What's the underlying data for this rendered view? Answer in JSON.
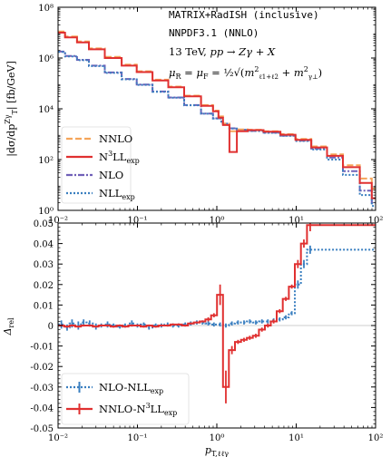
{
  "chart_data": [
    {
      "type": "line",
      "panel": "top",
      "ylabel": "|dσ/dp_T^{Zγ}| [fb/GeV]",
      "x_scale": "log",
      "y_scale": "log",
      "xlim": [
        0.01,
        100
      ],
      "ylim": [
        1,
        100000000
      ],
      "x_ticks": [
        "10⁻²",
        "10⁻¹",
        "10⁰",
        "10¹",
        "10²"
      ],
      "y_ticks": [
        "10⁰",
        "10²",
        "10⁴",
        "10⁶",
        "10⁸"
      ],
      "annotations": [
        "MATRIX+RadISH (inclusive)",
        "NNPDF3.1 (NNLO)",
        "13 TeV, pp → Zγ + X",
        "μR = μF = ½√(m²ℓ1+ℓ2 + m²γ⊥)"
      ],
      "legend_position": "lower-left",
      "series": [
        {
          "name": "NNLO",
          "color": "#f5a55a",
          "style": "dashed",
          "x": [
            0.01,
            0.015,
            0.02,
            0.03,
            0.05,
            0.08,
            0.12,
            0.2,
            0.3,
            0.5,
            0.8,
            1.0,
            1.1,
            1.3,
            1.6,
            2.0,
            3.0,
            5.0,
            8.0,
            12.0,
            20.0,
            30.0,
            50.0,
            80.0,
            100.0
          ],
          "y": [
            11000000,
            7000000,
            4500000,
            2400000,
            1100000,
            550000,
            300000,
            140000,
            75000,
            33000,
            14000,
            8500,
            5000,
            2600,
            1300,
            1550,
            1500,
            1300,
            1000,
            650,
            330,
            160,
            60,
            18,
            7
          ]
        },
        {
          "name": "N³LL_exp",
          "color": "#e03030",
          "style": "solid",
          "x": [
            0.01,
            0.015,
            0.02,
            0.03,
            0.05,
            0.08,
            0.12,
            0.2,
            0.3,
            0.5,
            0.8,
            1.0,
            1.1,
            1.3,
            1.6,
            2.0,
            3.0,
            5.0,
            8.0,
            12.0,
            20.0,
            30.0,
            50.0,
            80.0,
            100.0
          ],
          "y": [
            10000000,
            6500000,
            4100000,
            2200000,
            1000000,
            500000,
            280000,
            130000,
            70000,
            31000,
            13000,
            8000,
            4500,
            2300,
            200,
            1300,
            1450,
            1250,
            950,
            600,
            300,
            140,
            50,
            12,
            3
          ]
        },
        {
          "name": "NLO",
          "color": "#7060b8",
          "style": "dashdot",
          "x": [
            0.01,
            0.015,
            0.02,
            0.03,
            0.05,
            0.08,
            0.12,
            0.2,
            0.3,
            0.5,
            0.8,
            1.0,
            1.3,
            1.6,
            2.0,
            3.0,
            5.0,
            8.0,
            12.0,
            20.0,
            30.0,
            50.0,
            80.0,
            100.0
          ],
          "y": [
            1800000,
            1200000,
            850000,
            500000,
            270000,
            150000,
            90000,
            48000,
            28000,
            14000,
            6500,
            4200,
            2600,
            1700,
            1500,
            1350,
            1150,
            880,
            560,
            270,
            120,
            35,
            6,
            2
          ]
        },
        {
          "name": "NLL_exp",
          "color": "#3a7fc0",
          "style": "dotted",
          "x": [
            0.01,
            0.015,
            0.02,
            0.03,
            0.05,
            0.08,
            0.12,
            0.2,
            0.3,
            0.5,
            0.8,
            1.0,
            1.3,
            1.6,
            2.0,
            3.0,
            5.0,
            8.0,
            12.0,
            20.0,
            30.0,
            50.0,
            80.0,
            100.0
          ],
          "y": [
            1750000,
            1150000,
            820000,
            480000,
            260000,
            145000,
            88000,
            47000,
            27500,
            13800,
            6400,
            4150,
            2580,
            1680,
            1480,
            1330,
            1130,
            860,
            540,
            250,
            100,
            25,
            4,
            1.5
          ]
        }
      ]
    },
    {
      "type": "line",
      "panel": "bottom",
      "xlabel": "p_{T,ℓℓγ}",
      "ylabel": "Δ_rel",
      "x_scale": "log",
      "xlim": [
        0.01,
        100
      ],
      "ylim": [
        -0.05,
        0.05
      ],
      "x_ticks": [
        "10⁻²",
        "10⁻¹",
        "10⁰",
        "10¹",
        "10²"
      ],
      "y_ticks": [
        "-0.05",
        "-0.04",
        "-0.03",
        "-0.02",
        "-0.01",
        "0",
        "0.01",
        "0.02",
        "0.03",
        "0.04",
        "0.05"
      ],
      "legend_position": "lower-left",
      "series": [
        {
          "name": "NLO-NLL_exp",
          "color": "#3a7fc0",
          "style": "dotted-errorbars",
          "x": [
            0.011,
            0.013,
            0.015,
            0.018,
            0.021,
            0.025,
            0.03,
            0.035,
            0.042,
            0.05,
            0.06,
            0.07,
            0.085,
            0.1,
            0.12,
            0.14,
            0.17,
            0.2,
            0.24,
            0.28,
            0.33,
            0.4,
            0.47,
            0.56,
            0.66,
            0.78,
            0.92,
            1.1,
            1.3,
            1.55,
            1.85,
            2.2,
            2.6,
            3.1,
            3.7,
            4.4,
            5.2,
            6.2,
            7.4,
            8.8,
            10.5,
            12.5,
            15.0
          ],
          "y": [
            0.0005,
            -0.001,
            0.001,
            0.0,
            0.0015,
            0.001,
            -0.0005,
            0.0,
            0.0005,
            0.0,
            -0.0005,
            0.0,
            0.001,
            0.0,
            0.0005,
            -0.001,
            0.0,
            0.0,
            0.0005,
            0.0,
            0.0,
            0.0005,
            0.001,
            0.0015,
            0.0015,
            0.001,
            0.0005,
            0.0005,
            0.0,
            0.001,
            0.0015,
            0.0015,
            0.002,
            0.0015,
            0.002,
            0.002,
            0.0025,
            0.003,
            0.004,
            0.006,
            0.02,
            0.03,
            0.037
          ],
          "yerr": [
            0.002,
            0.0015,
            0.002,
            0.002,
            0.0015,
            0.0015,
            0.0015,
            0.001,
            0.0015,
            0.001,
            0.001,
            0.001,
            0.0015,
            0.001,
            0.001,
            0.001,
            0.001,
            0.001,
            0.001,
            0.001,
            0.001,
            0.001,
            0.001,
            0.001,
            0.001,
            0.001,
            0.001,
            0.001,
            0.001,
            0.001,
            0.001,
            0.001,
            0.001,
            0.001,
            0.001,
            0.001,
            0.001,
            0.001,
            0.001,
            0.001,
            0.002,
            0.002,
            0.002
          ]
        },
        {
          "name": "NNLO-N³LL_exp",
          "color": "#e03030",
          "style": "solid-errorbars",
          "x": [
            0.011,
            0.013,
            0.015,
            0.018,
            0.021,
            0.025,
            0.03,
            0.035,
            0.042,
            0.05,
            0.06,
            0.07,
            0.085,
            0.1,
            0.12,
            0.14,
            0.17,
            0.2,
            0.24,
            0.28,
            0.33,
            0.4,
            0.47,
            0.56,
            0.66,
            0.78,
            0.92,
            1.1,
            1.3,
            1.55,
            1.85,
            2.2,
            2.6,
            3.1,
            3.7,
            4.4,
            5.2,
            6.2,
            7.4,
            8.8,
            10.5,
            12.5,
            15.0
          ],
          "y": [
            0.0,
            -0.0005,
            0.0,
            -0.0005,
            0.0,
            0.0,
            -0.0005,
            0.0,
            0.0,
            -0.0005,
            0.0,
            -0.0005,
            0.0,
            0.0,
            -0.0005,
            0.0,
            -0.0005,
            0.0,
            0.0,
            0.0005,
            0.0005,
            0.0,
            0.001,
            0.0015,
            0.002,
            0.003,
            0.005,
            0.015,
            -0.03,
            -0.012,
            -0.008,
            -0.007,
            -0.006,
            -0.005,
            -0.002,
            0.0,
            0.002,
            0.007,
            0.013,
            0.019,
            0.03,
            0.04,
            0.049
          ],
          "yerr": [
            0.0005,
            0.0005,
            0.0005,
            0.0005,
            0.0005,
            0.0005,
            0.0005,
            0.0005,
            0.0005,
            0.0005,
            0.0005,
            0.0005,
            0.0005,
            0.0005,
            0.0005,
            0.0005,
            0.0005,
            0.0005,
            0.0005,
            0.0005,
            0.0005,
            0.0005,
            0.0005,
            0.0005,
            0.0005,
            0.001,
            0.001,
            0.005,
            0.008,
            0.002,
            0.001,
            0.001,
            0.001,
            0.001,
            0.001,
            0.001,
            0.001,
            0.001,
            0.001,
            0.001,
            0.002,
            0.002,
            0.003
          ]
        }
      ]
    }
  ]
}
